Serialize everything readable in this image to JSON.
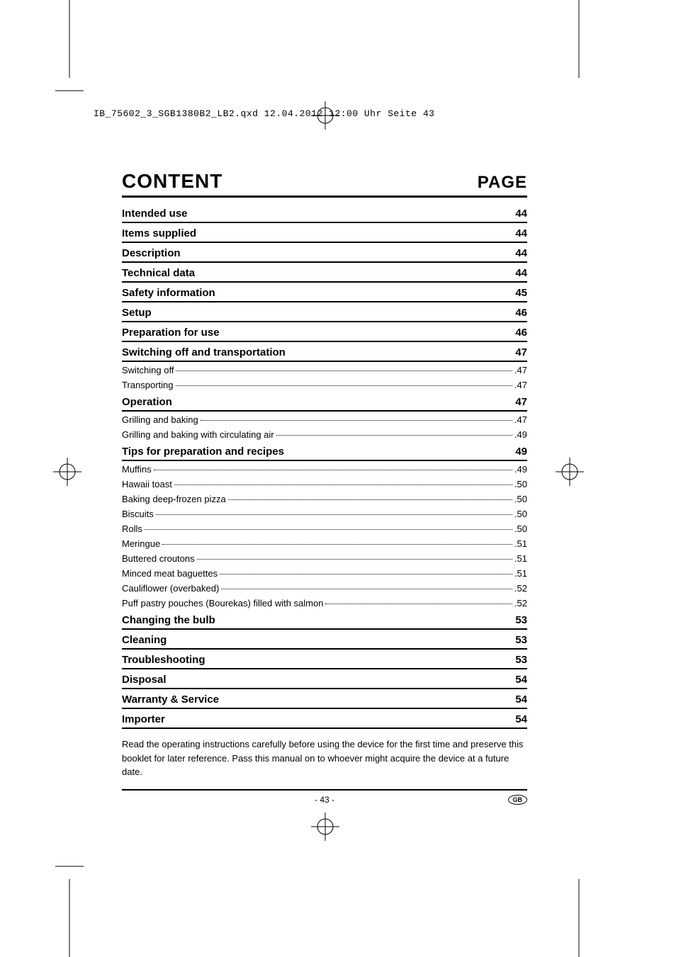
{
  "header_info": "IB_75602_3_SGB1380B2_LB2.qxd  12.04.2012  12:00 Uhr  Seite 43",
  "title": {
    "left": "CONTENT",
    "right": "PAGE"
  },
  "sections": [
    {
      "title": "Intended use",
      "page": "44",
      "subitems": []
    },
    {
      "title": "Items supplied",
      "page": "44",
      "subitems": []
    },
    {
      "title": "Description",
      "page": "44",
      "subitems": []
    },
    {
      "title": "Technical data",
      "page": "44",
      "subitems": []
    },
    {
      "title": "Safety information",
      "page": "45",
      "subitems": []
    },
    {
      "title": "Setup",
      "page": "46",
      "subitems": []
    },
    {
      "title": "Preparation for use",
      "page": "46",
      "subitems": []
    },
    {
      "title": "Switching off and transportation",
      "page": "47",
      "subitems": [
        {
          "title": "Switching off",
          "page": "47"
        },
        {
          "title": "Transporting",
          "page": "47"
        }
      ]
    },
    {
      "title": "Operation",
      "page": "47",
      "subitems": [
        {
          "title": "Grilling and baking",
          "page": "47"
        },
        {
          "title": "Grilling and baking with circulating air",
          "page": "49"
        }
      ]
    },
    {
      "title": "Tips for preparation and recipes",
      "page": "49",
      "subitems": [
        {
          "title": "Muffins",
          "page": "49"
        },
        {
          "title": "Hawaii toast",
          "page": "50"
        },
        {
          "title": "Baking deep-frozen pizza",
          "page": "50"
        },
        {
          "title": "Biscuits",
          "page": "50"
        },
        {
          "title": "Rolls",
          "page": "50"
        },
        {
          "title": "Meringue",
          "page": "51"
        },
        {
          "title": "Buttered croutons",
          "page": "51"
        },
        {
          "title": "Minced meat baguettes",
          "page": "51"
        },
        {
          "title": "Cauliflower (overbaked)",
          "page": "52"
        },
        {
          "title": "Puff pastry pouches (Bourekas) filled with salmon",
          "page": "52"
        }
      ]
    },
    {
      "title": "Changing the bulb",
      "page": "53",
      "subitems": []
    },
    {
      "title": "Cleaning",
      "page": "53",
      "subitems": []
    },
    {
      "title": "Troubleshooting",
      "page": "53",
      "subitems": []
    },
    {
      "title": "Disposal",
      "page": "54",
      "subitems": []
    },
    {
      "title": "Warranty & Service",
      "page": "54",
      "subitems": []
    },
    {
      "title": "Importer",
      "page": "54",
      "subitems": []
    }
  ],
  "footer_note": "Read the operating instructions carefully before using the device for the first time and preserve this booklet for later reference. Pass this manual on to whoever might acquire the device at a future date.",
  "page_number": "- 43 -",
  "language_badge": "GB",
  "colors": {
    "text": "#000000",
    "background": "#ffffff",
    "rule": "#000000"
  }
}
